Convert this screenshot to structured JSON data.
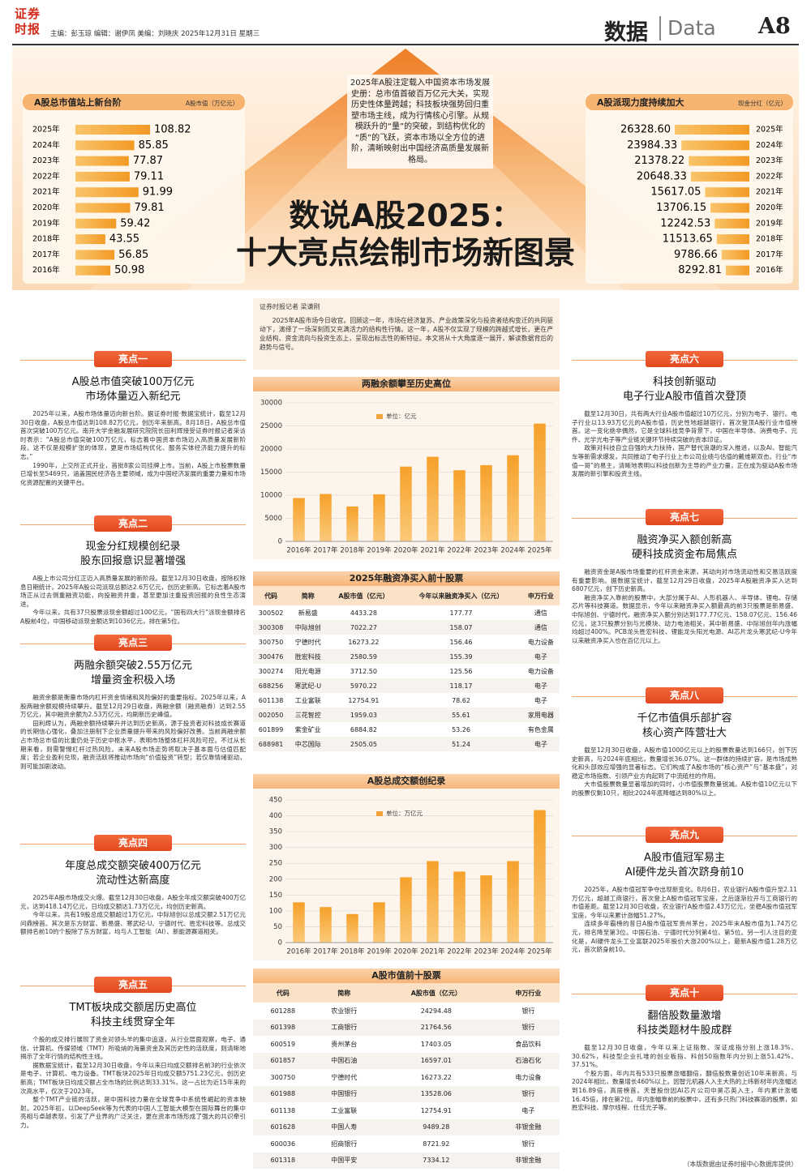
{
  "header": {
    "logo": "证券时报",
    "credits": "主编：彭玉琼 编辑：谢伊凤 美编：刘晓庆 2025年12月31日 星期三",
    "section": "数据",
    "section_en": "Data",
    "page": "A8"
  },
  "banner": {
    "intro": "2025年A股注定载入中国资本市场发展史册：总市值首破百万亿元大关，实现历史性体量跨越；科技板块强势回归重塑市场主线，成为行情核心引擎。从规模跃升的“量”的突破，到结构优化的“质”的飞跃，资本市场以全方位的进阶，清晰映射出中国经济高质量发展新格局。",
    "title": [
      "数说A股2025：",
      "十大亮点绘制市场新图景"
    ]
  },
  "market_cap_chart": {
    "type": "hbar",
    "title": "A股总市值站上新台阶",
    "unit": "A股市值（万亿元）",
    "categories": [
      "2025年",
      "2024年",
      "2023年",
      "2022年",
      "2021年",
      "2020年",
      "2019年",
      "2018年",
      "2017年",
      "2016年"
    ],
    "values": [
      108.82,
      85.85,
      77.87,
      79.11,
      91.99,
      79.81,
      59.42,
      43.55,
      56.85,
      50.98
    ],
    "color": "#f4a23a"
  },
  "dividend_chart": {
    "type": "hbar",
    "title": "A股派现力度持续加大",
    "unit": "现金分红（亿元）",
    "categories": [
      "2025年",
      "2024年",
      "2023年",
      "2022年",
      "2021年",
      "2020年",
      "2019年",
      "2018年",
      "2017年",
      "2016年"
    ],
    "values": [
      26328.6,
      23984.33,
      21378.22,
      20648.33,
      15617.05,
      13706.15,
      12242.53,
      11513.65,
      9786.66,
      8292.81
    ],
    "value_labels": [
      "26328.60",
      "23984.33",
      "21378.22",
      "20648.33",
      "15617.05",
      "13706.15",
      "12242.53",
      "11513.65",
      "9786.66",
      "8292.81"
    ],
    "color": "#f4a23a"
  },
  "byline": "证券时报记者 梁谦刚",
  "lead": "2025年A股市场今日收官。回顾这一年，市场在经济复苏、产业政策深化与投资者结构变迁的共同驱动下，演绎了一场深刻而又充满活力的结构性行情。这一年，A股不仅实现了规模的跨越式增长，更在产业结构、资金流向与投资生态上，呈现出标志性的新特征。本文将从十大角度逐一展开，解读数据背后的趋势与信号。",
  "highlights": [
    {
      "badge": "亮点一",
      "headline": [
        "A股总市值突破100万亿元",
        "市场体量迈入新纪元"
      ],
      "paragraphs": [
        "2025年以来，A股市场体量迈向新台阶。据证券时报·数据宝统计，截至12月30日收盘，A股总市值达到108.82万亿元，创历年来新高。8月18日，A股总市值首次突破100万亿元。南开大学金融发展研究院院长田利辉接受证券时报记者采访时表示：“A股总市值突破100万亿元，标志着中国资本市场迈入高质量发展新阶段。这不仅是规模扩张的体现，更是市场结构优化、服务实体经济能力提升的标志。”",
        "1990年，上交所正式开业，首批8家公司挂牌上市。当前，A股上市股票数量已增长至5469只，涵盖国民经济各主要领域，成为中国经济发展的重要力量和市场化资源配置的关键平台。"
      ]
    },
    {
      "badge": "亮点二",
      "headline": [
        "现金分红规模创纪录",
        "股东回报意识显著增强"
      ],
      "paragraphs": [
        "A股上市公司分红正迈入高质量发展的新阶段。截至12月30日收盘，按除权除息日期统计，2025年A股公司派现总额达2.6万亿元，创历史新高。它标志着A股市场正从过去侧重融资功能，向投融资并重，甚至更加注重投资回报的良性生态演进。",
        "今年以来，共有37只股票派现金额超过100亿元，“国有四大行”派现金额排名A股前4位，中国移动派现金额达到1036亿元，排在第5位。"
      ]
    },
    {
      "badge": "亮点三",
      "headline": [
        "两融余额突破2.55万亿元",
        "增量资金积极入场"
      ],
      "paragraphs": [
        "融资余额是衡量市场内杠杆资金情绪和风险偏好的重要指标。2025年以来，A股两融余额规模持续攀升。截至12月29日收盘，两融余额（融资融券）达到2.55万亿元，其中融资余额为2.53万亿元，均刷新历史峰值。",
        "田利辉认为，两融余额持续攀升并达到历史新高，源于投资者对科技成长赛道的长期信心强化，叠加注册制下企业质量提升带来的风险偏好改善。当前两融余额占市场总市值的比重仍处于历史中枢水平，表明市场整体杠杆风险可控。不过从长期来看，则需警惕杠杆过热风险。未来A股市场走势将取决于基本面与估值匹配度；若企业盈利兑现，融资活跃将推动市场向“价值投资”转型；若仅靠情绪驱动，则可能加剧波动。"
      ]
    },
    {
      "badge": "亮点四",
      "headline": [
        "年度总成交额突破400万亿元",
        "流动性达新高度"
      ],
      "paragraphs": [
        "2025年A股市场成交火爆。截至12月30日收盘，A股全年成交额突破400万亿元，达到418.14万亿元，日均成交额达1.73万亿元，均创历史新高。",
        "今年以来，共有19股总成交额超过1万亿元，中际旭创以总成交额2.51万亿元问鼎榜首。其次是东方财富、新易盛、寒武纪-U、宁德时代、胜宏科技等。总成交额排名前10的个股除了东方财富，均与人工智能（AI）、新能源赛道相关。"
      ]
    },
    {
      "badge": "亮点五",
      "headline": [
        "TMT板块成交额居历史高位",
        "科技主线贯穿全年"
      ],
      "paragraphs": [
        "个股的成交排行展现了资金对领头羊的集中追逐，从行业层面观察，电子、通信、计算机、传媒领域（TMT）所吸纳的海量资金及其历史性的活跃度，则清晰地揭示了全年行情的结构性主线。",
        "据数据宝统计，截至12月30日收盘，今年以来日均成交额排名前3的行业依次是电子、计算机、电力设备。TMT板块2025年日均成交额5751.23亿元，创历史新高；TMT板块日均成交额占全市场的比例达到33.31%，这一占比为近15年来的次高水平，仅次于2023年。",
        "整个TMT产业链的活跃，是中国科技力量在全球竞争中系统性崛起的资本映射。2025年初，以DeepSeek等为代表的中国人工智能大模型在国际舞台的集中亮相与卓越表现，引发了产业界的广泛关注，更在资本市场形成了强大的共识牵引力。"
      ]
    },
    {
      "badge": "亮点六",
      "headline": [
        "科技创新驱动",
        "电子行业A股市值首次登顶"
      ],
      "paragraphs": [
        "截至12月30日，共有两大行业A股市值超过10万亿元，分别为电子、银行。电子行业以13.93万亿元的A股市值，历史性地超越银行，首次登顶A股行业市值榜首。这一变化绝非偶然，它是全球科技竞争背景下，中国在半导体、消费电子、元件、光学光电子等产业链关键环节持续突破的资本印证。",
        "政策对科技自立自强的大力扶持，国产替代浪潮的深入推进，以及AI、智能汽车等新需求爆发，共同推动了电子行业上市公司业绩与估值的戴维斯双击。行业“市值一哥”的易主，清晰地表明以科技创新为主导的产业力量，正在成为驱动A股市场发展的新引擎和投资主线。"
      ]
    },
    {
      "badge": "亮点七",
      "headline": [
        "融资净买入额创新高",
        "硬科技成资金布局焦点"
      ],
      "paragraphs": [
        "融资资金是A股市场重要的杠杆资金来源，其动向对市场流动性和交易活跃度有重要影响。据数据宝统计，截至12月29日收盘，2025年A股融资净买入达到6807亿元，创下历史新高。",
        "融资净买入靠前的股票中，大部分属于AI、人形机器人、半导体、锂电、存储芯片等科技赛道。数据显示，今年以来融资净买入额最高的前3只股票是新易盛、中际旭创、宁德时代，融资净买入额分别达到177.77亿元、158.07亿元、156.46亿元，这3只股票分别与光模块、动力电池相关，其中新易盛、中际旭创年内涨幅均超过400%。PCB龙头胜宏科技、锂能龙头阳光电源、AI芯片龙头寒武纪-U今年以来融资净买入也在百亿元以上。"
      ]
    },
    {
      "badge": "亮点八",
      "headline": [
        "千亿市值俱乐部扩容",
        "核心资产阵营壮大"
      ],
      "paragraphs": [
        "截至12月30日收盘，A股市值1000亿元以上的股票数量达到166只，创下历史新高，与2024年底相比，数量增长36.07%。这一群体的持续扩容，是市场成熟化和头部效应增强的显著标志。它们构成了A股市场的“核心资产”与“基本盘”，对稳定市场指数、引领产业方向起到了中流砥柱的作用。",
        "大市值股票数量显著增加的同时，小市值股票数量锐减。A股市值10亿元以下的股票仅剩10只，相比2024年底降幅达到80%以上。"
      ]
    },
    {
      "badge": "亮点九",
      "headline": [
        "A股市值冠军易主",
        "AI硬件龙头首次跻身前10"
      ],
      "paragraphs": [
        "2025年，A股市值冠军争夺出现新变化。8月6日，农业银行A股市值升至2.11万亿元，超越工商银行，首次登上A股市值冠军宝座，之后逐渐拉开与工商银行的市值差距。截至12月30日收盘，农业银行A股市值2.43万亿元，坐稳A股市值冠军宝座，今年以来累计涨幅51.27%。",
        "连续多年霸榜的昔日A股市值冠军贵州茅台，2025年末A股市值为1.74万亿元，排名降至第3位。中国石油、宁德时代分列第4位、第5位。另一引人注目的变化是，AI硬件龙头工业富联2025年股价大涨200%以上，最新A股市值1.28万亿元，首次跻身前10。"
      ]
    },
    {
      "badge": "亮点十",
      "headline": [
        "翻倍股数量激增",
        "科技类题材牛股成群"
      ],
      "paragraphs": [
        "截至12月30日收盘，今年以来上证指数、深证成指分别上涨18.3%、30.62%，科技型企业扎堆的创业板指、科创50指数年内分别上涨51.42%、37.51%。",
        "个股方面，年内共有533只股票涨幅翻倍，翻倍股数量创近10年来新高，与2024年相比，数量增长460%以上。因智元机器人入主大热的上纬新材年内涨幅达到16.89倍，高居榜首。天普股份因AI芯片公司中昊芯英入主，年内累计涨幅16.45倍，排在第2位。年内涨幅靠前的股票中，还有多只热门科技赛道的股票，如胜宏科技、摩尔线程、仕佳光子等。"
      ]
    }
  ],
  "margin_chart": {
    "type": "bar",
    "title": "两融余额攀至历史高位",
    "legend": "单位：亿元",
    "categories": [
      "2016年",
      "2017年",
      "2018年",
      "2019年",
      "2020年",
      "2021年",
      "2022年",
      "2023年",
      "2024年",
      "2025年"
    ],
    "values": [
      9390,
      10260,
      7560,
      10190,
      16190,
      18320,
      15400,
      16510,
      18650,
      25500
    ],
    "color": "#f4a23a",
    "ylim": [
      0,
      30000
    ],
    "yticks": [
      0,
      5000,
      10000,
      15000,
      20000,
      25000,
      30000
    ],
    "grid": true
  },
  "margin_table": {
    "title": "2025年融资净买入前十股票",
    "columns": [
      "代码",
      "简称",
      "A股市值（亿元）",
      "今年以来融资净买入（亿元）",
      "申万行业"
    ],
    "rows": [
      [
        "300502",
        "新易盛",
        "4433.28",
        "177.77",
        "通信"
      ],
      [
        "300308",
        "中际旭创",
        "7022.27",
        "158.07",
        "通信"
      ],
      [
        "300750",
        "宁德时代",
        "16273.22",
        "156.46",
        "电力设备"
      ],
      [
        "300476",
        "胜宏科技",
        "2580.59",
        "155.39",
        "电子"
      ],
      [
        "300274",
        "阳光电源",
        "3712.50",
        "125.56",
        "电力设备"
      ],
      [
        "688256",
        "寒武纪-U",
        "5970.22",
        "118.17",
        "电子"
      ],
      [
        "601138",
        "工业富联",
        "12754.91",
        "78.62",
        "电子"
      ],
      [
        "002050",
        "三花智控",
        "1959.03",
        "55.61",
        "家用电器"
      ],
      [
        "601899",
        "紫金矿业",
        "6884.82",
        "53.26",
        "有色金属"
      ],
      [
        "688981",
        "中芯国际",
        "2505.05",
        "51.24",
        "电子"
      ]
    ]
  },
  "turnover_chart": {
    "type": "bar",
    "title": "A股总成交额创纪录",
    "legend": "单位：万亿元",
    "categories": [
      "2016年",
      "2017年",
      "2018年",
      "2019年",
      "2020年",
      "2021年",
      "2022年",
      "2023年",
      "2024年",
      "2025年"
    ],
    "values": [
      127,
      112,
      90,
      127,
      206,
      257,
      224,
      212,
      257,
      418
    ],
    "color": "#f4a23a",
    "ylim": [
      0,
      450
    ],
    "yticks": [
      0,
      50,
      100,
      150,
      200,
      250,
      300,
      350,
      400,
      450
    ],
    "grid": true
  },
  "top_table": {
    "title": "A股市值前十股票",
    "columns": [
      "代码",
      "简称",
      "A股市值（亿元）",
      "申万行业"
    ],
    "rows": [
      [
        "601288",
        "农业银行",
        "24294.48",
        "银行"
      ],
      [
        "601398",
        "工商银行",
        "21764.56",
        "银行"
      ],
      [
        "600519",
        "贵州茅台",
        "17403.05",
        "食品饮料"
      ],
      [
        "601857",
        "中国石油",
        "16597.01",
        "石油石化"
      ],
      [
        "300750",
        "宁德时代",
        "16273.22",
        "电力设备"
      ],
      [
        "601988",
        "中国银行",
        "13528.06",
        "银行"
      ],
      [
        "601138",
        "工业富联",
        "12754.91",
        "电子"
      ],
      [
        "601628",
        "中国人寿",
        "9489.28",
        "非银金融"
      ],
      [
        "600036",
        "招商银行",
        "8721.92",
        "银行"
      ],
      [
        "601318",
        "中国平安",
        "7334.12",
        "非银金融"
      ]
    ]
  },
  "footer_note": "（本版数据由证券时报中心数据库提供）"
}
